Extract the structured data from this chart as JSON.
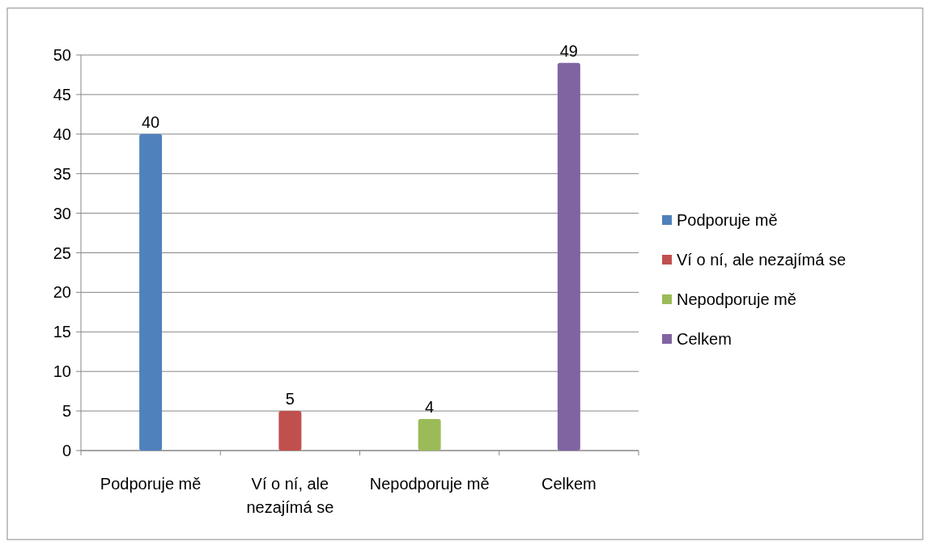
{
  "chart_data": {
    "type": "bar",
    "categories": [
      "Podporuje mě",
      "Ví o ní, ale nezajímá se",
      "Nepodporuje mě",
      "Celkem"
    ],
    "series": [
      {
        "name": "Podporuje mě",
        "color": "#4f81bd",
        "values": [
          40,
          null,
          null,
          null
        ]
      },
      {
        "name": "Ví o ní, ale nezajímá se",
        "color": "#c0504d",
        "values": [
          null,
          5,
          null,
          null
        ]
      },
      {
        "name": "Nepodporuje mě",
        "color": "#9bbb59",
        "values": [
          null,
          null,
          4,
          null
        ]
      },
      {
        "name": "Celkem",
        "color": "#8064a2",
        "values": [
          null,
          null,
          null,
          49
        ]
      }
    ],
    "ylim": [
      0,
      50
    ],
    "yticks": [
      0,
      5,
      10,
      15,
      20,
      25,
      30,
      35,
      40,
      45,
      50
    ],
    "grid": "y",
    "legend": "right",
    "data_labels": true
  }
}
